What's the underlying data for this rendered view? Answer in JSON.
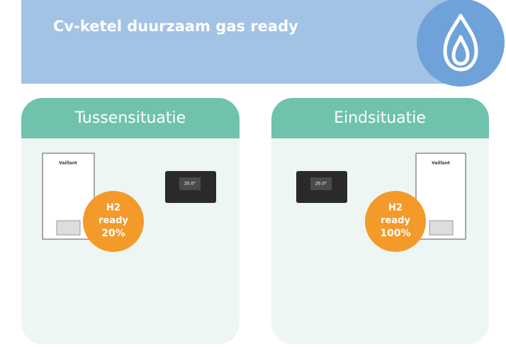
{
  "header": {
    "title": "Cv-ketel duurzaam gas ready"
  },
  "panels": [
    {
      "title": "Tussensituatie",
      "boiler_brand": "Vaillant",
      "thermostat_display": "20.0°",
      "badge": {
        "line1": "H2",
        "line2": "ready",
        "line3": "20%"
      }
    },
    {
      "title": "Eindsituatie",
      "boiler_brand": "Vaillant",
      "thermostat_display": "20.0°",
      "badge": {
        "line1": "H2",
        "line2": "ready",
        "line3": "100%"
      }
    }
  ]
}
